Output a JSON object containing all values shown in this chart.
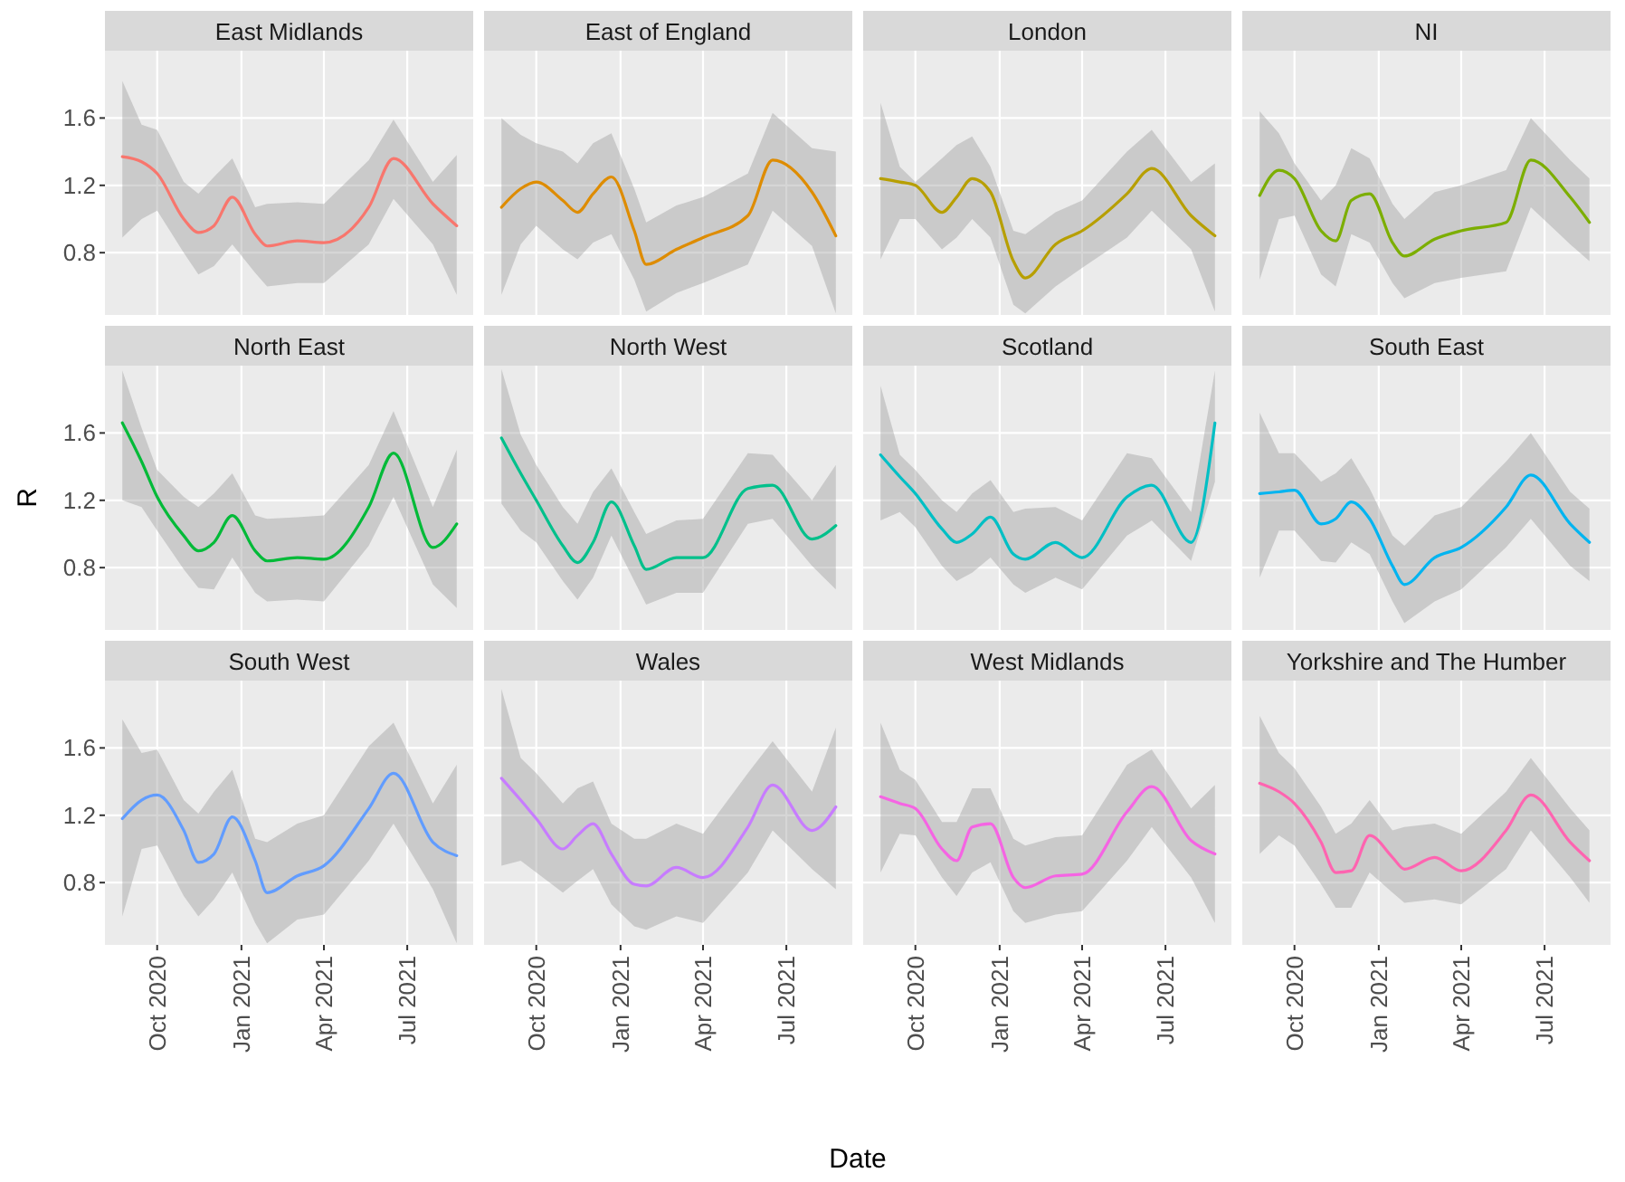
{
  "chart_data": [
    {
      "type": "line",
      "title": "East Midlands",
      "x": [
        "2020-08-24",
        "2020-09-14",
        "2020-10-01",
        "2020-10-30",
        "2020-11-15",
        "2020-12-02",
        "2020-12-22",
        "2021-01-16",
        "2021-01-29",
        "2021-03-03",
        "2021-04-01",
        "2021-05-20",
        "2021-06-16",
        "2021-07-29",
        "2021-08-24"
      ],
      "xlim": [
        "2020-08-05",
        "2021-09-11"
      ],
      "xticks": [
        {
          "value": "2020-10-01",
          "label": null
        },
        {
          "value": "2021-01-01",
          "label": null
        },
        {
          "value": "2021-04-01",
          "label": null
        },
        {
          "value": "2021-07-01",
          "label": null
        }
      ],
      "ylim": [
        0.43,
        2.0
      ],
      "yticks": [
        0.8,
        1.2,
        1.6
      ],
      "grid": true,
      "tick_labels": "y",
      "series": [
        {
          "color": "#f8766d",
          "values": [
            1.37,
            1.34,
            1.27,
            1.0,
            0.92,
            0.96,
            1.13,
            0.91,
            0.84,
            0.87,
            0.86,
            1.07,
            1.36,
            1.09,
            0.96
          ],
          "upper": [
            1.82,
            1.56,
            1.53,
            1.22,
            1.15,
            1.25,
            1.36,
            1.07,
            1.09,
            1.1,
            1.09,
            1.35,
            1.59,
            1.22,
            1.38
          ],
          "lower": [
            0.89,
            1.0,
            1.05,
            0.8,
            0.67,
            0.72,
            0.85,
            0.68,
            0.6,
            0.62,
            0.62,
            0.85,
            1.12,
            0.85,
            0.55
          ]
        }
      ]
    },
    {
      "type": "line",
      "title": "East of England",
      "x": [
        "2020-08-24",
        "2020-09-14",
        "2020-10-01",
        "2020-10-30",
        "2020-11-15",
        "2020-12-02",
        "2020-12-22",
        "2021-01-16",
        "2021-01-29",
        "2021-03-03",
        "2021-04-01",
        "2021-05-20",
        "2021-06-16",
        "2021-07-29",
        "2021-08-24"
      ],
      "xlim": [
        "2020-08-05",
        "2021-09-11"
      ],
      "xticks": [
        {
          "value": "2020-10-01",
          "label": null
        },
        {
          "value": "2021-01-01",
          "label": null
        },
        {
          "value": "2021-04-01",
          "label": null
        },
        {
          "value": "2021-07-01",
          "label": null
        }
      ],
      "ylim": [
        0.43,
        2.0
      ],
      "yticks": [
        0.8,
        1.2,
        1.6
      ],
      "grid": true,
      "tick_labels": false,
      "series": [
        {
          "color": "#de8c00",
          "values": [
            1.07,
            1.18,
            1.22,
            1.11,
            1.04,
            1.15,
            1.25,
            0.93,
            0.73,
            0.82,
            0.89,
            1.02,
            1.35,
            1.16,
            0.9
          ],
          "upper": [
            1.6,
            1.5,
            1.45,
            1.4,
            1.33,
            1.45,
            1.51,
            1.18,
            0.98,
            1.08,
            1.13,
            1.27,
            1.63,
            1.42,
            1.4
          ],
          "lower": [
            0.55,
            0.85,
            0.96,
            0.82,
            0.76,
            0.86,
            0.91,
            0.64,
            0.45,
            0.56,
            0.62,
            0.73,
            1.05,
            0.84,
            0.44
          ]
        }
      ]
    },
    {
      "type": "line",
      "title": "London",
      "x": [
        "2020-08-24",
        "2020-09-14",
        "2020-10-01",
        "2020-10-30",
        "2020-11-15",
        "2020-12-02",
        "2020-12-22",
        "2021-01-16",
        "2021-01-29",
        "2021-03-03",
        "2021-04-01",
        "2021-05-20",
        "2021-06-16",
        "2021-07-29",
        "2021-08-24"
      ],
      "xlim": [
        "2020-08-05",
        "2021-09-11"
      ],
      "xticks": [
        {
          "value": "2020-10-01",
          "label": null
        },
        {
          "value": "2021-01-01",
          "label": null
        },
        {
          "value": "2021-04-01",
          "label": null
        },
        {
          "value": "2021-07-01",
          "label": null
        }
      ],
      "ylim": [
        0.43,
        2.0
      ],
      "yticks": [
        0.8,
        1.2,
        1.6
      ],
      "grid": true,
      "tick_labels": false,
      "series": [
        {
          "color": "#b79f00",
          "values": [
            1.24,
            1.22,
            1.2,
            1.04,
            1.13,
            1.24,
            1.16,
            0.75,
            0.65,
            0.85,
            0.93,
            1.15,
            1.3,
            1.02,
            0.9
          ],
          "upper": [
            1.69,
            1.31,
            1.22,
            1.36,
            1.44,
            1.49,
            1.31,
            0.93,
            0.91,
            1.04,
            1.11,
            1.4,
            1.53,
            1.22,
            1.33
          ],
          "lower": [
            0.76,
            1.0,
            1.0,
            0.82,
            0.89,
            1.0,
            0.89,
            0.49,
            0.44,
            0.6,
            0.71,
            0.89,
            1.05,
            0.82,
            0.45
          ]
        }
      ]
    },
    {
      "type": "line",
      "title": "NI",
      "x": [
        "2020-08-24",
        "2020-09-14",
        "2020-10-01",
        "2020-10-30",
        "2020-11-15",
        "2020-12-02",
        "2020-12-22",
        "2021-01-16",
        "2021-01-29",
        "2021-03-03",
        "2021-04-01",
        "2021-05-20",
        "2021-06-16",
        "2021-07-29",
        "2021-08-19"
      ],
      "xlim": [
        "2020-08-05",
        "2021-09-11"
      ],
      "xticks": [
        {
          "value": "2020-10-01",
          "label": null
        },
        {
          "value": "2021-01-01",
          "label": null
        },
        {
          "value": "2021-04-01",
          "label": null
        },
        {
          "value": "2021-07-01",
          "label": null
        }
      ],
      "ylim": [
        0.43,
        2.0
      ],
      "yticks": [
        0.8,
        1.2,
        1.6
      ],
      "grid": true,
      "tick_labels": false,
      "series": [
        {
          "color": "#7cae00",
          "values": [
            1.14,
            1.29,
            1.24,
            0.93,
            0.87,
            1.11,
            1.15,
            0.86,
            0.78,
            0.88,
            0.93,
            0.98,
            1.35,
            1.13,
            0.98
          ],
          "upper": [
            1.64,
            1.51,
            1.33,
            1.11,
            1.2,
            1.42,
            1.36,
            1.09,
            1.0,
            1.16,
            1.2,
            1.29,
            1.6,
            1.35,
            1.24
          ],
          "lower": [
            0.64,
            1.0,
            1.02,
            0.67,
            0.6,
            0.91,
            0.86,
            0.62,
            0.53,
            0.62,
            0.65,
            0.69,
            1.07,
            0.85,
            0.75
          ]
        }
      ]
    },
    {
      "type": "line",
      "title": "North East",
      "ylabel": "R",
      "x": [
        "2020-08-24",
        "2020-09-14",
        "2020-10-01",
        "2020-10-30",
        "2020-11-15",
        "2020-12-02",
        "2020-12-22",
        "2021-01-16",
        "2021-01-29",
        "2021-03-03",
        "2021-04-01",
        "2021-05-20",
        "2021-06-16",
        "2021-07-29",
        "2021-08-24"
      ],
      "xlim": [
        "2020-08-05",
        "2021-09-11"
      ],
      "xticks": [
        {
          "value": "2020-10-01",
          "label": null
        },
        {
          "value": "2021-01-01",
          "label": null
        },
        {
          "value": "2021-04-01",
          "label": null
        },
        {
          "value": "2021-07-01",
          "label": null
        }
      ],
      "ylim": [
        0.43,
        2.0
      ],
      "yticks": [
        0.8,
        1.2,
        1.6
      ],
      "grid": true,
      "tick_labels": "y",
      "series": [
        {
          "color": "#00ba38",
          "values": [
            1.66,
            1.43,
            1.22,
            0.99,
            0.9,
            0.95,
            1.11,
            0.9,
            0.84,
            0.86,
            0.85,
            1.16,
            1.48,
            0.92,
            1.06
          ],
          "upper": [
            1.97,
            1.63,
            1.38,
            1.22,
            1.16,
            1.24,
            1.36,
            1.11,
            1.09,
            1.1,
            1.11,
            1.41,
            1.73,
            1.16,
            1.5
          ],
          "lower": [
            1.2,
            1.16,
            1.02,
            0.79,
            0.68,
            0.67,
            0.86,
            0.65,
            0.6,
            0.61,
            0.6,
            0.93,
            1.22,
            0.7,
            0.56
          ]
        }
      ]
    },
    {
      "type": "line",
      "title": "North West",
      "x": [
        "2020-08-24",
        "2020-09-14",
        "2020-10-01",
        "2020-10-30",
        "2020-11-15",
        "2020-12-02",
        "2020-12-22",
        "2021-01-16",
        "2021-01-29",
        "2021-03-03",
        "2021-04-01",
        "2021-05-20",
        "2021-06-16",
        "2021-07-29",
        "2021-08-24"
      ],
      "xlim": [
        "2020-08-05",
        "2021-09-11"
      ],
      "xticks": [
        {
          "value": "2020-10-01",
          "label": null
        },
        {
          "value": "2021-01-01",
          "label": null
        },
        {
          "value": "2021-04-01",
          "label": null
        },
        {
          "value": "2021-07-01",
          "label": null
        }
      ],
      "ylim": [
        0.43,
        2.0
      ],
      "yticks": [
        0.8,
        1.2,
        1.6
      ],
      "grid": true,
      "tick_labels": false,
      "series": [
        {
          "color": "#00c08b",
          "values": [
            1.57,
            1.36,
            1.2,
            0.93,
            0.83,
            0.95,
            1.19,
            0.93,
            0.79,
            0.86,
            0.86,
            1.27,
            1.29,
            0.97,
            1.05
          ],
          "upper": [
            1.98,
            1.59,
            1.41,
            1.16,
            1.06,
            1.25,
            1.39,
            1.13,
            1.0,
            1.08,
            1.09,
            1.48,
            1.47,
            1.2,
            1.41
          ],
          "lower": [
            1.18,
            1.02,
            0.95,
            0.72,
            0.61,
            0.74,
            0.99,
            0.72,
            0.58,
            0.65,
            0.65,
            1.06,
            1.09,
            0.81,
            0.67
          ]
        }
      ]
    },
    {
      "type": "line",
      "title": "Scotland",
      "x": [
        "2020-08-24",
        "2020-09-14",
        "2020-10-01",
        "2020-10-30",
        "2020-11-15",
        "2020-12-02",
        "2020-12-22",
        "2021-01-16",
        "2021-01-29",
        "2021-03-03",
        "2021-04-01",
        "2021-05-20",
        "2021-06-16",
        "2021-07-29",
        "2021-08-24"
      ],
      "xlim": [
        "2020-08-05",
        "2021-09-11"
      ],
      "xticks": [
        {
          "value": "2020-10-01",
          "label": null
        },
        {
          "value": "2021-01-01",
          "label": null
        },
        {
          "value": "2021-04-01",
          "label": null
        },
        {
          "value": "2021-07-01",
          "label": null
        }
      ],
      "ylim": [
        0.43,
        2.0
      ],
      "yticks": [
        0.8,
        1.2,
        1.6
      ],
      "grid": true,
      "tick_labels": false,
      "series": [
        {
          "color": "#00bfc4",
          "values": [
            1.47,
            1.34,
            1.24,
            1.03,
            0.95,
            1.0,
            1.1,
            0.88,
            0.85,
            0.95,
            0.86,
            1.22,
            1.29,
            0.95,
            1.66
          ],
          "upper": [
            1.88,
            1.47,
            1.38,
            1.2,
            1.13,
            1.24,
            1.32,
            1.13,
            1.15,
            1.16,
            1.08,
            1.48,
            1.45,
            1.13,
            1.97
          ],
          "lower": [
            1.08,
            1.13,
            1.04,
            0.81,
            0.72,
            0.77,
            0.86,
            0.7,
            0.65,
            0.74,
            0.67,
            0.99,
            1.08,
            0.84,
            1.31
          ]
        }
      ]
    },
    {
      "type": "line",
      "title": "South East",
      "x": [
        "2020-08-24",
        "2020-09-14",
        "2020-10-01",
        "2020-10-30",
        "2020-11-15",
        "2020-12-02",
        "2020-12-22",
        "2021-01-16",
        "2021-01-29",
        "2021-03-03",
        "2021-04-01",
        "2021-05-20",
        "2021-06-16",
        "2021-07-29",
        "2021-08-19"
      ],
      "xlim": [
        "2020-08-05",
        "2021-09-11"
      ],
      "xticks": [
        {
          "value": "2020-10-01",
          "label": null
        },
        {
          "value": "2021-01-01",
          "label": null
        },
        {
          "value": "2021-04-01",
          "label": null
        },
        {
          "value": "2021-07-01",
          "label": null
        }
      ],
      "ylim": [
        0.43,
        2.0
      ],
      "yticks": [
        0.8,
        1.2,
        1.6
      ],
      "grid": true,
      "tick_labels": false,
      "series": [
        {
          "color": "#00b4f0",
          "values": [
            1.24,
            1.25,
            1.26,
            1.06,
            1.09,
            1.19,
            1.09,
            0.81,
            0.7,
            0.86,
            0.92,
            1.16,
            1.35,
            1.06,
            0.95
          ],
          "upper": [
            1.72,
            1.48,
            1.48,
            1.31,
            1.36,
            1.45,
            1.27,
            0.99,
            0.93,
            1.11,
            1.16,
            1.43,
            1.6,
            1.25,
            1.15
          ],
          "lower": [
            0.74,
            1.02,
            1.02,
            0.84,
            0.83,
            0.95,
            0.88,
            0.6,
            0.47,
            0.6,
            0.67,
            0.92,
            1.09,
            0.81,
            0.72
          ]
        }
      ]
    },
    {
      "type": "line",
      "title": "South West",
      "x": [
        "2020-08-24",
        "2020-09-14",
        "2020-10-01",
        "2020-10-30",
        "2020-11-15",
        "2020-12-02",
        "2020-12-22",
        "2021-01-16",
        "2021-01-29",
        "2021-03-03",
        "2021-04-01",
        "2021-05-20",
        "2021-06-16",
        "2021-07-29",
        "2021-08-24"
      ],
      "xlim": [
        "2020-08-05",
        "2021-09-11"
      ],
      "xticks": [
        {
          "value": "2020-10-01",
          "label": "Oct 2020"
        },
        {
          "value": "2021-01-01",
          "label": "Jan 2021"
        },
        {
          "value": "2021-04-01",
          "label": "Apr 2021"
        },
        {
          "value": "2021-07-01",
          "label": "Jul 2021"
        }
      ],
      "ylim": [
        0.43,
        2.0
      ],
      "yticks": [
        0.8,
        1.2,
        1.6
      ],
      "grid": true,
      "series": [
        {
          "color": "#619cff",
          "values": [
            1.18,
            1.29,
            1.32,
            1.11,
            0.92,
            0.97,
            1.19,
            0.93,
            0.74,
            0.84,
            0.9,
            1.24,
            1.45,
            1.04,
            0.96
          ],
          "upper": [
            1.77,
            1.57,
            1.59,
            1.29,
            1.21,
            1.34,
            1.47,
            1.06,
            1.04,
            1.15,
            1.2,
            1.61,
            1.75,
            1.27,
            1.5
          ],
          "lower": [
            0.6,
            1.0,
            1.02,
            0.72,
            0.6,
            0.7,
            0.86,
            0.56,
            0.44,
            0.58,
            0.61,
            0.93,
            1.15,
            0.76,
            0.44
          ]
        }
      ]
    },
    {
      "type": "line",
      "title": "Wales",
      "xlabel": "Date",
      "x": [
        "2020-08-24",
        "2020-09-14",
        "2020-10-01",
        "2020-10-30",
        "2020-11-15",
        "2020-12-02",
        "2020-12-22",
        "2021-01-16",
        "2021-01-29",
        "2021-03-03",
        "2021-04-01",
        "2021-05-20",
        "2021-06-16",
        "2021-07-29",
        "2021-08-24"
      ],
      "xlim": [
        "2020-08-05",
        "2021-09-11"
      ],
      "xticks": [
        {
          "value": "2020-10-01",
          "label": "Oct 2020"
        },
        {
          "value": "2021-01-01",
          "label": "Jan 2021"
        },
        {
          "value": "2021-04-01",
          "label": "Apr 2021"
        },
        {
          "value": "2021-07-01",
          "label": "Jul 2021"
        }
      ],
      "ylim": [
        0.43,
        2.0
      ],
      "yticks": [
        0.8,
        1.2,
        1.6
      ],
      "grid": true,
      "tick_labels": "x",
      "series": [
        {
          "color": "#c77cff",
          "values": [
            1.42,
            1.29,
            1.18,
            1.0,
            1.08,
            1.15,
            0.97,
            0.79,
            0.78,
            0.89,
            0.83,
            1.13,
            1.38,
            1.11,
            1.25
          ],
          "upper": [
            1.95,
            1.54,
            1.45,
            1.27,
            1.36,
            1.4,
            1.15,
            1.06,
            1.06,
            1.15,
            1.09,
            1.45,
            1.64,
            1.34,
            1.72
          ],
          "lower": [
            0.9,
            0.93,
            0.86,
            0.74,
            0.81,
            0.88,
            0.67,
            0.54,
            0.52,
            0.6,
            0.56,
            0.86,
            1.11,
            0.88,
            0.76
          ]
        }
      ]
    },
    {
      "type": "line",
      "title": "West Midlands",
      "x": [
        "2020-08-24",
        "2020-09-14",
        "2020-10-01",
        "2020-10-30",
        "2020-11-15",
        "2020-12-02",
        "2020-12-22",
        "2021-01-16",
        "2021-01-29",
        "2021-03-03",
        "2021-04-01",
        "2021-05-20",
        "2021-06-16",
        "2021-07-29",
        "2021-08-24"
      ],
      "xlim": [
        "2020-08-05",
        "2021-09-11"
      ],
      "xticks": [
        {
          "value": "2020-10-01",
          "label": "Oct 2020"
        },
        {
          "value": "2021-01-01",
          "label": "Jan 2021"
        },
        {
          "value": "2021-04-01",
          "label": "Apr 2021"
        },
        {
          "value": "2021-07-01",
          "label": "Jul 2021"
        }
      ],
      "ylim": [
        0.43,
        2.0
      ],
      "yticks": [
        0.8,
        1.2,
        1.6
      ],
      "grid": true,
      "tick_labels": "x",
      "series": [
        {
          "color": "#f564e3",
          "values": [
            1.31,
            1.27,
            1.24,
            1.0,
            0.93,
            1.13,
            1.15,
            0.83,
            0.77,
            0.84,
            0.85,
            1.22,
            1.37,
            1.05,
            0.97
          ],
          "upper": [
            1.75,
            1.47,
            1.41,
            1.16,
            1.16,
            1.36,
            1.36,
            1.06,
            1.02,
            1.07,
            1.08,
            1.5,
            1.59,
            1.24,
            1.38
          ],
          "lower": [
            0.86,
            1.09,
            1.08,
            0.83,
            0.72,
            0.86,
            0.92,
            0.63,
            0.56,
            0.61,
            0.63,
            0.93,
            1.13,
            0.83,
            0.56
          ]
        }
      ]
    },
    {
      "type": "line",
      "title": "Yorkshire and The Humber",
      "x": [
        "2020-08-24",
        "2020-09-14",
        "2020-10-01",
        "2020-10-30",
        "2020-11-15",
        "2020-12-02",
        "2020-12-22",
        "2021-01-16",
        "2021-01-29",
        "2021-03-03",
        "2021-04-01",
        "2021-05-20",
        "2021-06-16",
        "2021-07-29",
        "2021-08-19"
      ],
      "xlim": [
        "2020-08-05",
        "2021-09-11"
      ],
      "xticks": [
        {
          "value": "2020-10-01",
          "label": "Oct 2020"
        },
        {
          "value": "2021-01-01",
          "label": "Jan 2021"
        },
        {
          "value": "2021-04-01",
          "label": "Apr 2021"
        },
        {
          "value": "2021-07-01",
          "label": "Jul 2021"
        }
      ],
      "ylim": [
        0.43,
        2.0
      ],
      "yticks": [
        0.8,
        1.2,
        1.6
      ],
      "grid": true,
      "tick_labels": "x",
      "series": [
        {
          "color": "#ff64b0",
          "values": [
            1.39,
            1.34,
            1.27,
            1.04,
            0.86,
            0.87,
            1.08,
            0.95,
            0.88,
            0.95,
            0.87,
            1.11,
            1.32,
            1.04,
            0.93
          ],
          "upper": [
            1.79,
            1.57,
            1.48,
            1.25,
            1.09,
            1.15,
            1.29,
            1.11,
            1.13,
            1.15,
            1.09,
            1.34,
            1.54,
            1.24,
            1.11
          ],
          "lower": [
            0.97,
            1.08,
            1.02,
            0.79,
            0.65,
            0.65,
            0.86,
            0.74,
            0.68,
            0.7,
            0.67,
            0.88,
            1.11,
            0.83,
            0.68
          ]
        }
      ]
    }
  ]
}
